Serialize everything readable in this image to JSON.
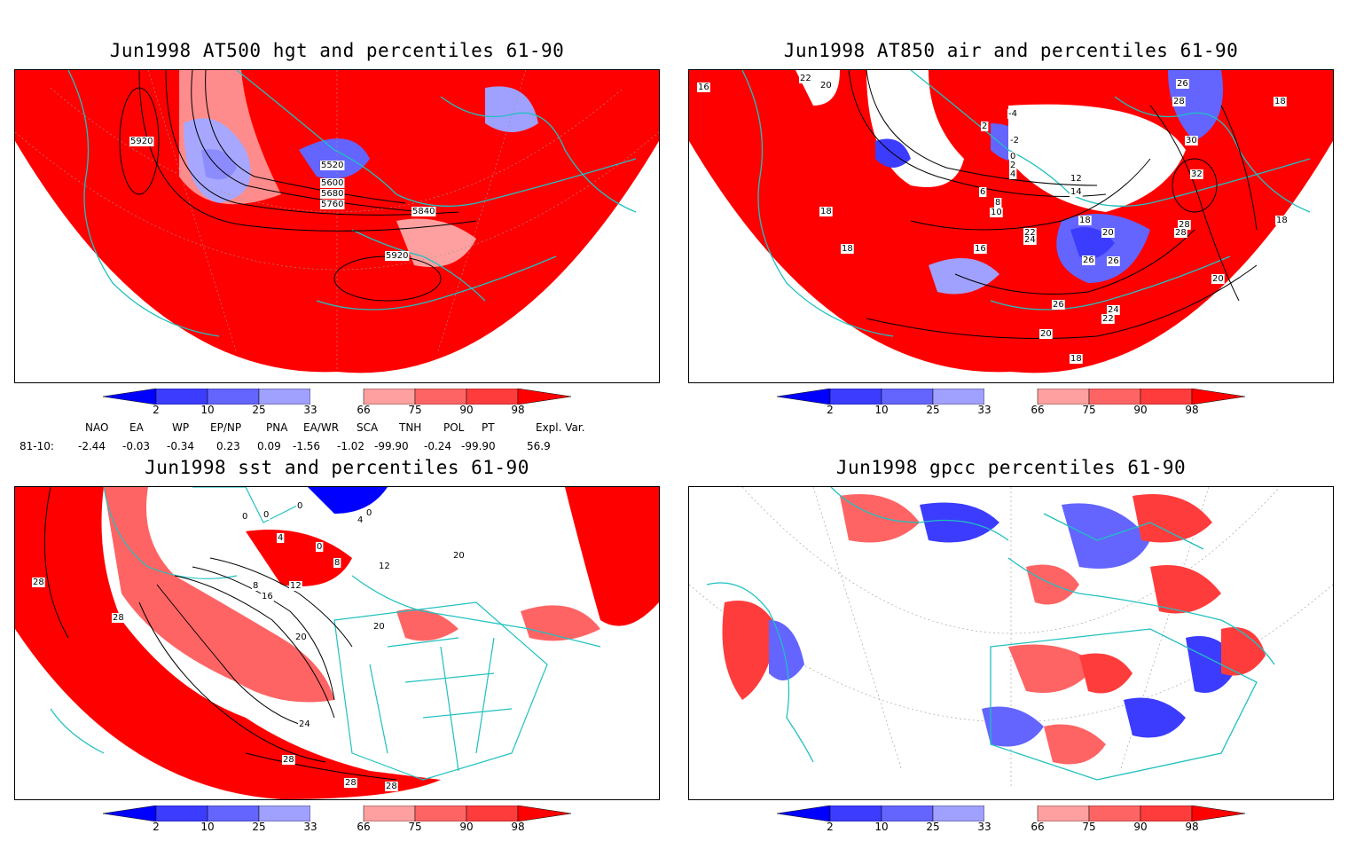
{
  "panels": [
    {
      "title": "Jun1998 AT500 hgt and percentiles 61-90",
      "contour_labels": [
        "5920",
        "5520",
        "5600",
        "5680",
        "5760",
        "5840",
        "5920"
      ]
    },
    {
      "title": "Jun1998 AT850 air and percentiles 61-90",
      "contour_labels": [
        "16",
        "22",
        "20",
        "2",
        "-4",
        "-2",
        "0",
        "2",
        "4",
        "6",
        "8",
        "10",
        "12",
        "14",
        "18",
        "22",
        "24",
        "20",
        "26",
        "26",
        "18",
        "18",
        "16",
        "28",
        "28",
        "26",
        "28",
        "30",
        "32",
        "18",
        "18",
        "20",
        "26",
        "24",
        "22",
        "20",
        "18"
      ]
    },
    {
      "title": "Jun1998 sst and percentiles 61-90",
      "contour_labels": [
        "0",
        "0",
        "0",
        "4",
        "0",
        "8",
        "12",
        "4",
        "0",
        "8",
        "12",
        "16",
        "20",
        "20",
        "20",
        "24",
        "28",
        "28",
        "28",
        "28",
        "28"
      ]
    },
    {
      "title": "Jun1998 gpcc percentiles 61-90",
      "contour_labels": []
    }
  ],
  "colorbar": {
    "labels": [
      "2",
      "10",
      "25",
      "33",
      "66",
      "75",
      "90",
      "98"
    ],
    "colors": [
      "#0000ff",
      "#3c3cff",
      "#6464ff",
      "#a0a0ff",
      "#ffffff",
      "#ffa0a0",
      "#ff6464",
      "#ff3c3c",
      "#ff0000"
    ]
  },
  "indices": {
    "headers": [
      "NAO",
      "EA",
      "WP",
      "EP/NP",
      "PNA",
      "EA/WR",
      "SCA",
      "TNH",
      "POL",
      "PT",
      "Expl. Var."
    ],
    "row_label": "81-10:",
    "values": [
      "-2.44",
      "-0.03",
      "-0.34",
      "0.23",
      "0.09",
      "-1.56",
      "-1.02",
      "-99.90",
      "-0.24",
      "-99.90",
      "56.9"
    ]
  },
  "colors": {
    "coast": "#20c0c0",
    "red": "#ff0000",
    "blue": "#1818ff",
    "contour": "#000000"
  }
}
